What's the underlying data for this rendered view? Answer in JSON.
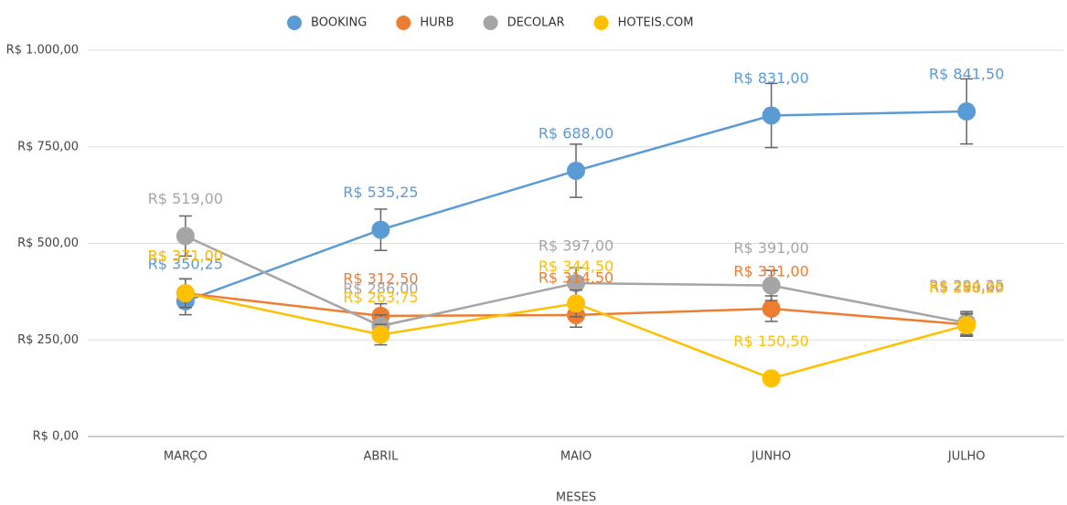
{
  "chart_data": {
    "type": "line",
    "x_label": "MESES",
    "categories": [
      "MARÇO",
      "ABRIL",
      "MAIO",
      "JUNHO",
      "JULHO"
    ],
    "ylim": [
      0,
      1000
    ],
    "yticks": [
      {
        "value": 0,
        "label": "R$ 0,00"
      },
      {
        "value": 250,
        "label": "R$ 250,00"
      },
      {
        "value": 500,
        "label": "R$ 500,00"
      },
      {
        "value": 750,
        "label": "R$ 750,00"
      },
      {
        "value": 1000,
        "label": "R$ 1.000,00"
      }
    ],
    "grid": true,
    "legend": "top",
    "series": [
      {
        "name": "BOOKING",
        "color": "#5b9bd5",
        "values": [
          350.25,
          535.25,
          688,
          831,
          841.5
        ],
        "errors": [
          35,
          53.5,
          68.8,
          83.1,
          84.2
        ],
        "value_labels": [
          "R$ 350,25",
          "R$ 535,25",
          "R$ 688,00",
          "R$ 831,00",
          "R$ 841,50"
        ]
      },
      {
        "name": "HURB",
        "color": "#ed7d31",
        "values": [
          371,
          312.5,
          314.5,
          331,
          290
        ],
        "errors": [
          37.1,
          31.3,
          31.5,
          33.1,
          29
        ],
        "value_labels": [
          "R$ 371,00",
          "R$ 312,50",
          "R$ 314,50",
          "R$ 331,00",
          "R$ 290,00"
        ]
      },
      {
        "name": "DECOLAR",
        "color": "#a5a5a5",
        "values": [
          519,
          286,
          397,
          391,
          294.25
        ],
        "errors": [
          51.9,
          28.6,
          39.7,
          39.1,
          29.4
        ],
        "value_labels": [
          "R$ 519,00",
          "R$ 286,00",
          "R$ 397,00",
          "R$ 391,00",
          "R$ 294,25"
        ]
      },
      {
        "name": "HOTEIS.COM",
        "color": "#ffc000",
        "values": [
          371,
          263.75,
          344.5,
          150.5,
          288.25
        ],
        "errors": [
          37.1,
          26.4,
          34.5,
          15.1,
          28.8
        ],
        "value_labels": [
          "R$ 371,00",
          "R$ 263,75",
          "R$ 344,50",
          "R$ 150,50",
          "R$ 288,25"
        ]
      }
    ]
  }
}
